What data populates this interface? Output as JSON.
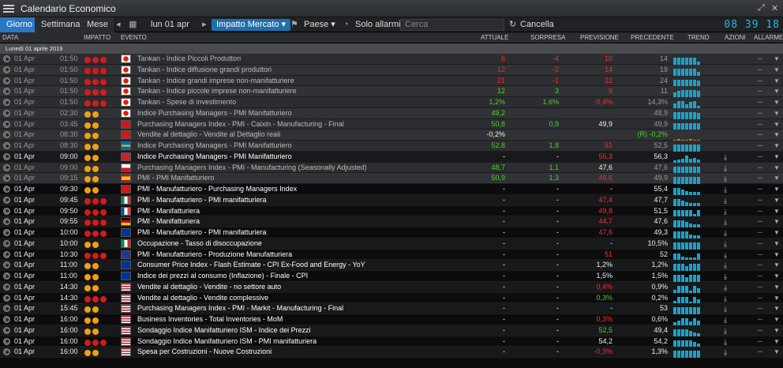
{
  "window": {
    "title": "Calendario Economico"
  },
  "toolbar": {
    "tabs": [
      "Giorno",
      "Settimana",
      "Mese"
    ],
    "date": "lun 01 apr",
    "impact": "Impatto Mercato",
    "country": "Paese",
    "alarms_only": "Solo allarmi",
    "search_placeholder": "Cerca",
    "cancel": "Cancella",
    "clock": "08 39 18"
  },
  "columns": [
    "DATA",
    "IMPATTO",
    "EVENTO",
    "ATTUALE",
    "SORPRESA",
    "PREVISIONE",
    "PRECEDENTE",
    "TREND",
    "AZIONI",
    "ALLARME"
  ],
  "date_group": "Lunedì 01 aprile 2019",
  "colors": {
    "accent": "#2a78c2",
    "positive": "#4fd11e",
    "negative": "#ff2a2a",
    "impact_high": "#d11c1c",
    "impact_med": "#f0a010",
    "trend": "#1ea0c8"
  },
  "rows": [
    {
      "date": "01 Apr",
      "time": "01:50",
      "impact": 3,
      "flag": "jp",
      "event": "Tankan - Indice Piccoli Produttori",
      "actual": "6",
      "actual_c": "neg",
      "surprise": "-4",
      "surprise_c": "neg",
      "forecast": "10",
      "forecast_c": "neg",
      "previous": "14",
      "past": true,
      "trend": [
        9,
        9,
        9,
        9,
        9,
        9,
        4
      ],
      "dl": false
    },
    {
      "date": "01 Apr",
      "time": "01:50",
      "impact": 3,
      "flag": "jp",
      "event": "Tankan - Indice diffusione grandi produttori",
      "actual": "12",
      "actual_c": "neg",
      "surprise": "-2",
      "surprise_c": "neg",
      "forecast": "14",
      "forecast_c": "neg",
      "previous": "19",
      "past": true,
      "trend": [
        9,
        9,
        9,
        9,
        9,
        9,
        5
      ],
      "dl": false
    },
    {
      "date": "01 Apr",
      "time": "01:50",
      "impact": 3,
      "flag": "jp",
      "event": "Tankan - Indice grandi imprese non-manifatturiere",
      "actual": "21",
      "actual_c": "neg",
      "surprise": "-1",
      "surprise_c": "neg",
      "forecast": "22",
      "forecast_c": "neg",
      "previous": "24",
      "past": true,
      "trend": [
        9,
        9,
        9,
        9,
        9,
        9,
        8
      ],
      "dl": false
    },
    {
      "date": "01 Apr",
      "time": "01:50",
      "impact": 3,
      "flag": "jp",
      "event": "Tankan - Indice piccole imprese non-manifatturiere",
      "actual": "12",
      "actual_c": "pos",
      "surprise": "3",
      "surprise_c": "pos",
      "forecast": "9",
      "forecast_c": "neg",
      "previous": "11",
      "past": true,
      "trend": [
        6,
        8,
        9,
        9,
        9,
        9,
        8
      ],
      "dl": false
    },
    {
      "date": "01 Apr",
      "time": "01:50",
      "impact": 3,
      "flag": "jp",
      "event": "Tankan - Spese di investimento",
      "actual": "1,2%",
      "actual_c": "pos",
      "surprise": "1,6%",
      "surprise_c": "pos",
      "forecast": "-0,4%",
      "forecast_c": "neg",
      "previous": "14,3%",
      "past": true,
      "trend": [
        6,
        9,
        9,
        5,
        8,
        9,
        3
      ],
      "dl": false
    },
    {
      "date": "01 Apr",
      "time": "02:30",
      "impact": 2,
      "flag": "jp",
      "event": "Indice Purchasing Managers - PMI Manifatturiero",
      "actual": "49,2",
      "actual_c": "pos",
      "surprise": "",
      "surprise_c": "",
      "forecast": "",
      "forecast_c": "",
      "previous": "48,9",
      "past": true,
      "trend": [
        9,
        9,
        9,
        9,
        9,
        9,
        8
      ],
      "dl": false
    },
    {
      "date": "01 Apr",
      "time": "03:45",
      "impact": 2,
      "flag": "cn",
      "event": "Purchasing Managers Index - PMI - Caixin - Manufacturing - Final",
      "actual": "50,8",
      "actual_c": "pos",
      "surprise": "0,9",
      "surprise_c": "pos",
      "forecast": "49,9",
      "forecast_c": "wht",
      "previous": "49,9",
      "past": true,
      "trend": [
        9,
        9,
        9,
        9,
        9,
        9,
        9
      ],
      "dl": false
    },
    {
      "date": "01 Apr",
      "time": "08:30",
      "impact": 2,
      "flag": "ch",
      "event": "Vendite al dettaglio - Vendite al Dettaglio reali",
      "actual": "-0,2%",
      "actual_c": "wht",
      "surprise": "",
      "surprise_c": "",
      "forecast": "",
      "forecast_c": "",
      "previous": "(R) -0,2%",
      "previous_c": "pos",
      "past": true,
      "trend": [
        0,
        2,
        0,
        0,
        2,
        0,
        0
      ],
      "dl": false
    },
    {
      "date": "01 Apr",
      "time": "08:30",
      "impact": 2,
      "flag": "se",
      "event": "Indice Purchasing Managers - PMI Manifatturiero",
      "actual": "52,8",
      "actual_c": "pos",
      "surprise": "1,8",
      "surprise_c": "pos",
      "forecast": "51",
      "forecast_c": "neg",
      "previous": "52,5",
      "past": true,
      "trend": [
        9,
        9,
        9,
        9,
        9,
        9,
        9
      ],
      "dl": false
    },
    {
      "date": "01 Apr",
      "time": "09:00",
      "impact": 2,
      "flag": "no",
      "event": "Indice Purchasing Managers - PMI Manifatturiero",
      "actual": "-",
      "actual_c": "wht",
      "surprise": "-",
      "surprise_c": "wht",
      "forecast": "55,3",
      "forecast_c": "neg",
      "previous": "56,3",
      "past": false,
      "trend": [
        3,
        4,
        5,
        9,
        5,
        6,
        4
      ],
      "dl": true
    },
    {
      "date": "01 Apr",
      "time": "09:00",
      "impact": 2,
      "flag": "cz",
      "event": "Purchasing Managers Index - PMI - Manufacturing (Seasonally Adjusted)",
      "actual": "48,7",
      "actual_c": "pos",
      "surprise": "1,1",
      "surprise_c": "pos",
      "forecast": "47,6",
      "forecast_c": "wht",
      "previous": "47,6",
      "past": true,
      "trend": [
        9,
        9,
        9,
        9,
        9,
        9,
        9
      ],
      "dl": true
    },
    {
      "date": "01 Apr",
      "time": "09:15",
      "impact": 2,
      "flag": "es",
      "event": "PMI - PMI Manifatturiero",
      "actual": "50,9",
      "actual_c": "pos",
      "surprise": "1,3",
      "surprise_c": "pos",
      "forecast": "49,6",
      "forecast_c": "neg",
      "previous": "49,9",
      "past": true,
      "trend": [
        9,
        9,
        9,
        9,
        9,
        9,
        9
      ],
      "dl": true
    },
    {
      "date": "01 Apr",
      "time": "09:30",
      "impact": 2,
      "flag": "ch",
      "event": "PMI - Manufatturiero - Purchasing Managers Index",
      "actual": "-",
      "actual_c": "wht",
      "surprise": "-",
      "surprise_c": "wht",
      "forecast": "-",
      "forecast_c": "wht",
      "previous": "55,4",
      "past": false,
      "trend": [
        9,
        9,
        7,
        5,
        4,
        4,
        4
      ],
      "dl": true
    },
    {
      "date": "01 Apr",
      "time": "09:45",
      "impact": 3,
      "flag": "it",
      "event": "PMI - Manufatturiero - PMI manifatturiera",
      "actual": "-",
      "actual_c": "wht",
      "surprise": "-",
      "surprise_c": "wht",
      "forecast": "47,4",
      "forecast_c": "neg",
      "previous": "47,7",
      "past": false,
      "trend": [
        9,
        9,
        7,
        5,
        4,
        4,
        4
      ],
      "dl": true
    },
    {
      "date": "01 Apr",
      "time": "09:50",
      "impact": 3,
      "flag": "fr",
      "event": "PMI - Manifatturiera",
      "actual": "-",
      "actual_c": "wht",
      "surprise": "-",
      "surprise_c": "wht",
      "forecast": "49,8",
      "forecast_c": "neg",
      "previous": "51,5",
      "past": false,
      "trend": [
        9,
        9,
        9,
        9,
        9,
        4,
        9
      ],
      "dl": true
    },
    {
      "date": "01 Apr",
      "time": "09:55",
      "impact": 3,
      "flag": "de",
      "event": "PMI - Manifatturiera",
      "actual": "-",
      "actual_c": "wht",
      "surprise": "-",
      "surprise_c": "wht",
      "forecast": "44,7",
      "forecast_c": "neg",
      "previous": "47,6",
      "past": false,
      "trend": [
        9,
        9,
        9,
        7,
        5,
        4,
        4
      ],
      "dl": true
    },
    {
      "date": "01 Apr",
      "time": "10:00",
      "impact": 3,
      "flag": "eu",
      "event": "PMI - Manufatturiero - PMI manifatturiera",
      "actual": "-",
      "actual_c": "wht",
      "surprise": "-",
      "surprise_c": "wht",
      "forecast": "47,6",
      "forecast_c": "neg",
      "previous": "49,3",
      "past": false,
      "trend": [
        9,
        9,
        9,
        9,
        5,
        4,
        4
      ],
      "dl": true
    },
    {
      "date": "01 Apr",
      "time": "10:00",
      "impact": 2,
      "flag": "it",
      "event": "Occupazione - Tasso di disoccupazione",
      "actual": "-",
      "actual_c": "wht",
      "surprise": "-",
      "surprise_c": "wht",
      "forecast": "-",
      "forecast_c": "wht",
      "previous": "10,5%",
      "past": false,
      "trend": [
        9,
        9,
        9,
        9,
        9,
        9,
        9
      ],
      "dl": true
    },
    {
      "date": "01 Apr",
      "time": "10:30",
      "impact": 3,
      "flag": "gb",
      "event": "PMI - Manufatturiero - Produzione Manufatturiera",
      "actual": "-",
      "actual_c": "wht",
      "surprise": "-",
      "surprise_c": "wht",
      "forecast": "51",
      "forecast_c": "neg",
      "previous": "52",
      "past": false,
      "trend": [
        9,
        9,
        5,
        4,
        4,
        4,
        9
      ],
      "dl": true
    },
    {
      "date": "01 Apr",
      "time": "11:00",
      "impact": 2,
      "flag": "eu",
      "event": "Consumer Price Index - Flash Estimate - CPI Ex-Food and Energy - YoY",
      "actual": "-",
      "actual_c": "wht",
      "surprise": "-",
      "surprise_c": "wht",
      "forecast": "1,2%",
      "forecast_c": "wht",
      "previous": "1,2%",
      "past": false,
      "trend": [
        9,
        9,
        9,
        6,
        9,
        9,
        9
      ],
      "dl": true
    },
    {
      "date": "01 Apr",
      "time": "11:00",
      "impact": 2,
      "flag": "eu",
      "event": "Indice dei prezzi al consumo (Inflazione) - Finale - CPI",
      "actual": "-",
      "actual_c": "wht",
      "surprise": "-",
      "surprise_c": "wht",
      "forecast": "1,5%",
      "forecast_c": "wht",
      "previous": "1,5%",
      "past": false,
      "trend": [
        9,
        9,
        9,
        6,
        9,
        9,
        9
      ],
      "dl": true
    },
    {
      "date": "01 Apr",
      "time": "14:30",
      "impact": 2,
      "flag": "us",
      "event": "Vendite al dettaglio - Vendite - no settore auto",
      "actual": "-",
      "actual_c": "wht",
      "surprise": "-",
      "surprise_c": "wht",
      "forecast": "0,4%",
      "forecast_c": "neg",
      "previous": "0,9%",
      "past": false,
      "trend": [
        4,
        9,
        9,
        9,
        3,
        9,
        6
      ],
      "dl": true
    },
    {
      "date": "01 Apr",
      "time": "14:30",
      "impact": 3,
      "flag": "us",
      "event": "Vendite al dettaglio - Vendite complessive",
      "actual": "-",
      "actual_c": "wht",
      "surprise": "-",
      "surprise_c": "wht",
      "forecast": "0,3%",
      "forecast_c": "pos",
      "previous": "0,2%",
      "past": false,
      "trend": [
        4,
        9,
        9,
        9,
        3,
        9,
        6
      ],
      "dl": true
    },
    {
      "date": "01 Apr",
      "time": "15:45",
      "impact": 2,
      "flag": "us",
      "event": "Purchasing Managers Index - PMI - Markit - Manufacturing - Final",
      "actual": "-",
      "actual_c": "wht",
      "surprise": "-",
      "surprise_c": "wht",
      "forecast": "-",
      "forecast_c": "wht",
      "previous": "53",
      "past": false,
      "trend": [
        9,
        9,
        9,
        9,
        9,
        9,
        9
      ],
      "dl": true
    },
    {
      "date": "01 Apr",
      "time": "16:00",
      "impact": 2,
      "flag": "us",
      "event": "Business Inventories - Total Inventories - MoM",
      "actual": "-",
      "actual_c": "wht",
      "surprise": "-",
      "surprise_c": "wht",
      "forecast": "0,3%",
      "forecast_c": "neg",
      "previous": "0,6%",
      "past": false,
      "trend": [
        4,
        6,
        9,
        9,
        5,
        9,
        6
      ],
      "dl": true
    },
    {
      "date": "01 Apr",
      "time": "16:00",
      "impact": 2,
      "flag": "us",
      "event": "Sondaggio Indice Manifatturiero ISM - Indice dei Prezzi",
      "actual": "-",
      "actual_c": "wht",
      "surprise": "-",
      "surprise_c": "wht",
      "forecast": "52,5",
      "forecast_c": "pos",
      "previous": "49,4",
      "past": false,
      "trend": [
        9,
        9,
        9,
        9,
        7,
        5,
        4
      ],
      "dl": true
    },
    {
      "date": "01 Apr",
      "time": "16:00",
      "impact": 3,
      "flag": "us",
      "event": "Sondaggio Indice Manifatturiero ISM - PMI manifatturiera",
      "actual": "-",
      "actual_c": "wht",
      "surprise": "-",
      "surprise_c": "wht",
      "forecast": "54,2",
      "forecast_c": "wht",
      "previous": "54,2",
      "past": false,
      "trend": [
        9,
        9,
        9,
        9,
        9,
        7,
        5
      ],
      "dl": true
    },
    {
      "date": "01 Apr",
      "time": "16:00",
      "impact": 2,
      "flag": "us",
      "event": "Spesa per Costruzioni - Nuove Costruzioni",
      "actual": "-",
      "actual_c": "wht",
      "surprise": "-",
      "surprise_c": "wht",
      "forecast": "-0,3%",
      "forecast_c": "neg",
      "previous": "1,3%",
      "past": false,
      "trend": [
        9,
        9,
        9,
        9,
        9,
        9,
        9
      ],
      "dl": true
    }
  ]
}
